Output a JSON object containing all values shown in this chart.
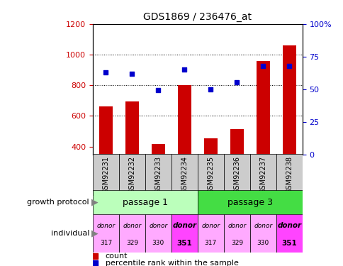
{
  "title": "GDS1869 / 236476_at",
  "samples": [
    "GSM92231",
    "GSM92232",
    "GSM92233",
    "GSM92234",
    "GSM92235",
    "GSM92236",
    "GSM92237",
    "GSM92238"
  ],
  "count_values": [
    660,
    695,
    415,
    800,
    455,
    515,
    960,
    1060
  ],
  "percentile_values": [
    63,
    62,
    49,
    65,
    50,
    55,
    68,
    68
  ],
  "ylim_left": [
    350,
    1200
  ],
  "ylim_right": [
    0,
    100
  ],
  "yticks_left": [
    400,
    600,
    800,
    1000,
    1200
  ],
  "yticks_right": [
    0,
    25,
    50,
    75,
    100
  ],
  "bar_color": "#cc0000",
  "dot_color": "#0000cc",
  "passage1_color": "#bbffbb",
  "passage3_color": "#44dd44",
  "donor_light_color": "#ffaaff",
  "donor_bold_color": "#ff44ff",
  "donor_labels": [
    "donor\n317",
    "donor\n329",
    "donor\n330",
    "donor\n351",
    "donor\n317",
    "donor\n329",
    "donor\n330",
    "donor\n351"
  ],
  "donor_bold": [
    false,
    false,
    false,
    true,
    false,
    false,
    false,
    true
  ],
  "grid_lines": [
    600,
    800,
    1000
  ],
  "bar_width": 0.5,
  "left_label_color": "#cc0000",
  "right_label_color": "#0000cc",
  "tick_bg_color": "#cccccc",
  "legend_items": [
    [
      "#cc0000",
      "count"
    ],
    [
      "#0000cc",
      "percentile rank within the sample"
    ]
  ]
}
